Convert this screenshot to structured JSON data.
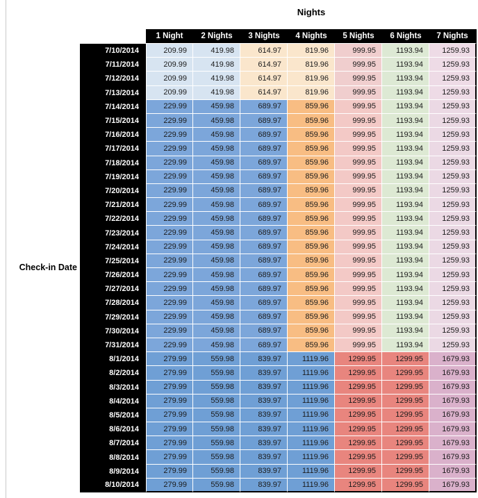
{
  "chart_data": {
    "type": "table",
    "title": "Nights",
    "row_axis_label": "Check-in Date",
    "columns": [
      "1 Night",
      "2 Nights",
      "3 Nights",
      "4 Nights",
      "5 Nights",
      "6 Nights",
      "7 Nights"
    ],
    "row_groups": [
      {
        "tier": "low",
        "dates": [
          "7/10/2014",
          "7/11/2014",
          "7/12/2014",
          "7/13/2014"
        ],
        "values": [
          209.99,
          419.98,
          614.97,
          819.96,
          999.95,
          1193.94,
          1259.93
        ]
      },
      {
        "tier": "mid",
        "dates": [
          "7/14/2014",
          "7/15/2014",
          "7/16/2014",
          "7/17/2014",
          "7/18/2014",
          "7/19/2014",
          "7/20/2014",
          "7/21/2014",
          "7/22/2014",
          "7/23/2014",
          "7/24/2014",
          "7/25/2014",
          "7/26/2014",
          "7/27/2014",
          "7/28/2014",
          "7/29/2014",
          "7/30/2014",
          "7/31/2014"
        ],
        "values": [
          229.99,
          459.98,
          689.97,
          859.96,
          999.95,
          1193.94,
          1259.93
        ]
      },
      {
        "tier": "high",
        "dates": [
          "8/1/2014",
          "8/2/2014",
          "8/3/2014",
          "8/4/2014",
          "8/5/2014",
          "8/6/2014",
          "8/7/2014",
          "8/8/2014",
          "8/9/2014",
          "8/10/2014"
        ],
        "values": [
          279.99,
          559.98,
          839.97,
          1119.96,
          1299.95,
          1299.95,
          1679.93
        ]
      }
    ],
    "colors": {
      "header_bg": "#000000",
      "header_text": "#ffffff",
      "number_text": "#1b1b1b",
      "cell_colors_by_tier": {
        "low": [
          "#D7E4F1",
          "#D7E4F1",
          "#FAE6CC",
          "#FAE6CC",
          "#F0CECE",
          "#DDE9D4",
          "#EEDBE6"
        ],
        "mid": [
          "#7CA6DA",
          "#7CA6DA",
          "#7CA6DA",
          "#F8BD83",
          "#F3C9C6",
          "#DDE9D3",
          "#EBD9E4"
        ],
        "high": [
          "#6F9FD5",
          "#6F9FD5",
          "#6F9FD5",
          "#6F9FD5",
          "#E8857E",
          "#E8857E",
          "#DAB1CB"
        ]
      }
    }
  }
}
